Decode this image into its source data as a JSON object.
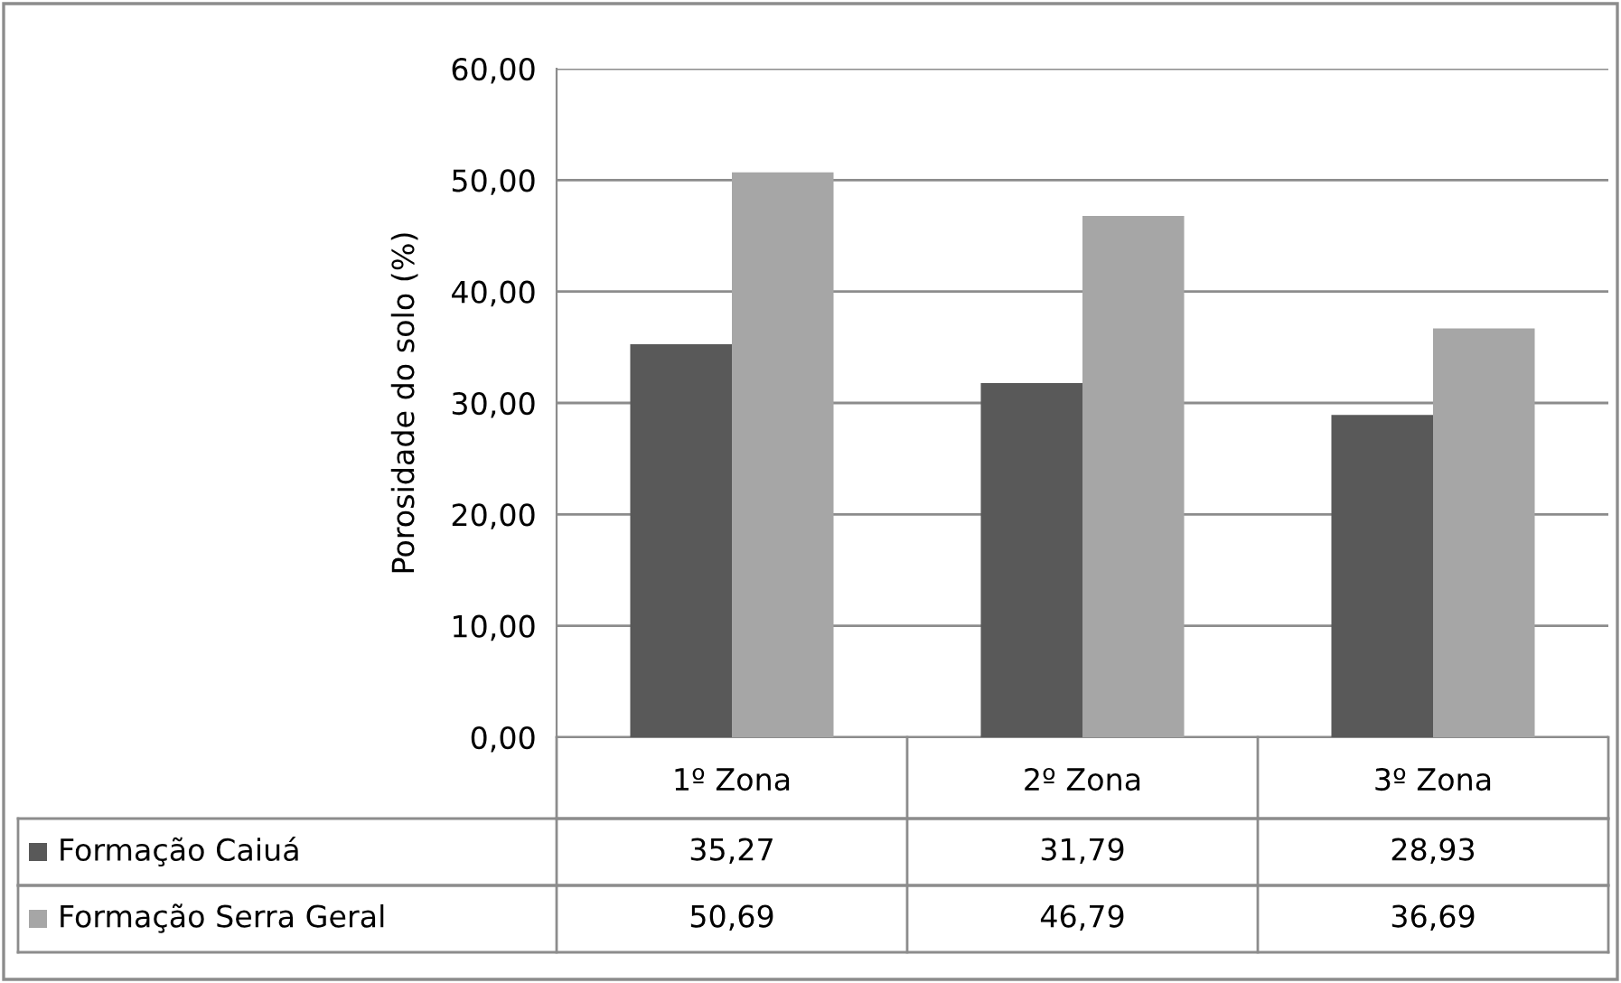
{
  "chart_data": {
    "type": "bar",
    "ylabel": "Porosidade do solo (%)",
    "categories": [
      "1º Zona",
      "2º Zona",
      "3º Zona"
    ],
    "series": [
      {
        "name": "Formação Caiuá",
        "color": "#595959",
        "values": [
          35.27,
          31.79,
          28.93
        ],
        "value_labels": [
          "35,27",
          "31,79",
          "28,93"
        ]
      },
      {
        "name": "Formação Serra Geral",
        "color": "#a6a6a6",
        "values": [
          50.69,
          46.79,
          36.69
        ],
        "value_labels": [
          "50,69",
          "46,79",
          "36,69"
        ]
      }
    ],
    "ylim": [
      0,
      60
    ],
    "yticks": [
      {
        "value": 0,
        "label": "0,00"
      },
      {
        "value": 10,
        "label": "10,00"
      },
      {
        "value": 20,
        "label": "20,00"
      },
      {
        "value": 30,
        "label": "30,00"
      },
      {
        "value": 40,
        "label": "40,00"
      },
      {
        "value": 50,
        "label": "50,00"
      },
      {
        "value": 60,
        "label": "60,00"
      }
    ],
    "grid": "y",
    "legend": "bottom left"
  }
}
